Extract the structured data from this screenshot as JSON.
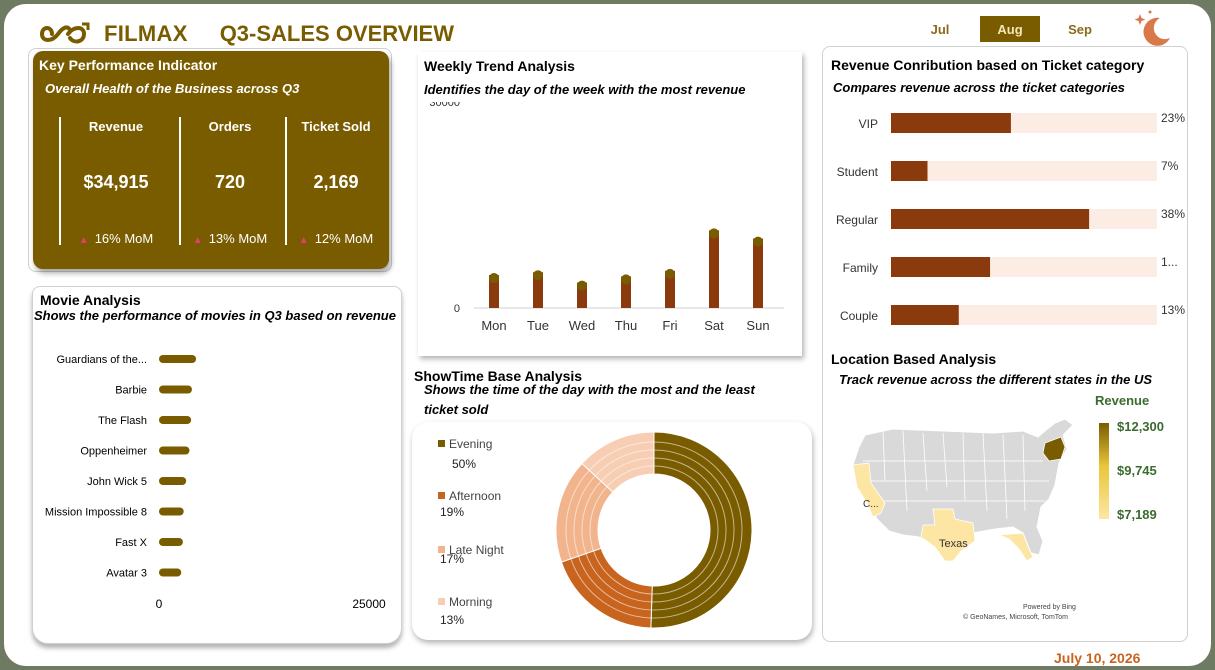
{
  "header": {
    "brand": "FILMAX",
    "title": "Q3-SALES OVERVIEW",
    "months": [
      "Jul",
      "Aug",
      "Sep"
    ],
    "active_month": "Aug",
    "date": "July 10, 2026",
    "logo_icon": "infinity-icon",
    "decor_icon": "moon-stars-icon"
  },
  "kpi": {
    "title": "Key Performance Indicator",
    "subtitle": "Overall Health of the Business across Q3",
    "items": [
      {
        "label": "Revenue",
        "value": "$34,915",
        "mom": "16% MoM"
      },
      {
        "label": "Orders",
        "value": "720",
        "mom": "13% MoM"
      },
      {
        "label": "Ticket Sold",
        "value": "2,169",
        "mom": "12% MoM"
      }
    ]
  },
  "movie": {
    "title": "Movie Analysis",
    "subtitle": "Shows the performance of movies in Q3 based on revenue"
  },
  "weekly": {
    "title": "Weekly Trend Analysis",
    "subtitle": "Identifies the day of the week with the most revenue"
  },
  "showtime": {
    "title": "ShowTime Base Analysis",
    "subtitle_line1": "Shows the time of the day with the most and the least",
    "subtitle_line2": "ticket sold"
  },
  "ticket": {
    "title": "Revenue Conribution based on Ticket category",
    "subtitle": "Compares revenue across the ticket categories"
  },
  "location": {
    "title": "Location Based Analysis",
    "subtitle": "Track revenue across the different states in the US",
    "legend_title": "Revenue",
    "legend_values": [
      "$12,300",
      "$9,745",
      "$7,189"
    ],
    "state_labels": [
      "C...",
      "Texas"
    ],
    "credit1": "Powered by Bing",
    "credit2": "© GeoNames, Microsoft, TomTom"
  },
  "colors": {
    "gold": "#7a5c00",
    "brown": "#8b3a0e",
    "light_bar": "#fbece4",
    "afternoon": "#c8641e",
    "late_night": "#f2b48c",
    "morning": "#f7cdb3"
  },
  "chart_data": [
    {
      "type": "bar",
      "orientation": "horizontal",
      "categories": [
        "Guardians of the...",
        "Barbie",
        "The Flash",
        "Oppenheimer",
        "John Wick 5",
        "Mission Impossible 8",
        "Fast X",
        "Avatar 3"
      ],
      "values": [
        4500,
        4000,
        3900,
        3700,
        3300,
        3000,
        2900,
        2700
      ],
      "xlim": [
        0,
        25000
      ],
      "tick_labels": [
        "0",
        "25000"
      ]
    },
    {
      "type": "bar",
      "categories": [
        "Mon",
        "Tue",
        "Wed",
        "Thu",
        "Fri",
        "Sat",
        "Sun"
      ],
      "values": [
        4800,
        5200,
        3700,
        4600,
        5400,
        11300,
        10100
      ],
      "ylim": [
        0,
        30000
      ],
      "tick_labels": [
        "0",
        "30000"
      ]
    },
    {
      "type": "pie",
      "style": "donut",
      "categories": [
        "Evening",
        "Afternoon",
        "Late Night",
        "Morning"
      ],
      "values": [
        50,
        19,
        17,
        13
      ],
      "labels": [
        "50%",
        "19%",
        "17%",
        "13%"
      ],
      "legend": "left"
    },
    {
      "type": "bar",
      "orientation": "horizontal",
      "categories": [
        "VIP",
        "Student",
        "Regular",
        "Family",
        "Couple"
      ],
      "values": [
        23,
        7,
        38,
        19,
        13
      ],
      "labels": [
        "23%",
        "7%",
        "38%",
        "1...",
        "13%"
      ],
      "xlim": [
        0,
        50
      ]
    }
  ]
}
